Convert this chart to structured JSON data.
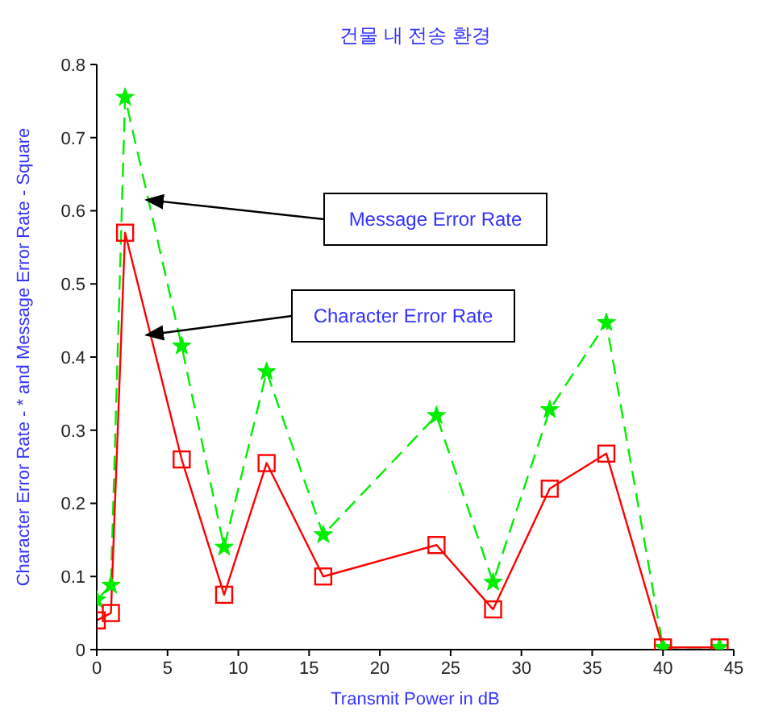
{
  "chart_data": {
    "type": "line",
    "title": "건물 내 전송 환경",
    "xlabel": "Transmit Power in dB",
    "ylabel": "Character Error Rate - * and Message Error Rate - Square",
    "x": [
      0,
      1,
      2,
      6,
      9,
      12,
      16,
      24,
      28,
      32,
      36,
      40,
      44
    ],
    "series": [
      {
        "color": "#00ee00",
        "marker": "star",
        "line_style": "dashed",
        "values": [
          0.068,
          0.088,
          0.755,
          0.415,
          0.14,
          0.38,
          0.157,
          0.32,
          0.092,
          0.328,
          0.447,
          0.003,
          0.003
        ]
      },
      {
        "color": "#ff0000",
        "marker": "square",
        "line_style": "solid",
        "values": [
          0.04,
          0.05,
          0.57,
          0.26,
          0.075,
          0.255,
          0.1,
          0.143,
          0.055,
          0.22,
          0.268,
          0.003,
          0.003
        ]
      }
    ],
    "xlim": [
      0,
      45
    ],
    "xticks": [
      0,
      5,
      10,
      15,
      20,
      25,
      30,
      35,
      40,
      45
    ],
    "ylim": [
      0,
      0.8
    ],
    "yticks": [
      0,
      0.1,
      0.2,
      0.3,
      0.4,
      0.5,
      0.6,
      0.7,
      0.8
    ],
    "grid": false,
    "annotations": [
      {
        "text": "Message Error Rate",
        "x": 3.5,
        "y": 0.615
      },
      {
        "text": "Character Error Rate",
        "x": 3.5,
        "y": 0.43
      }
    ]
  }
}
